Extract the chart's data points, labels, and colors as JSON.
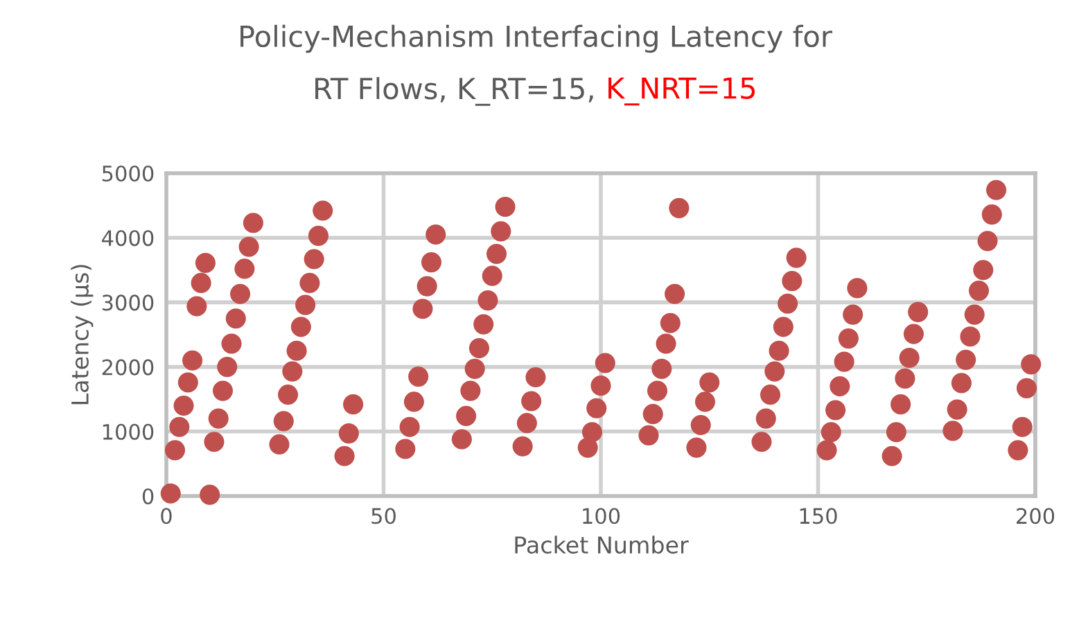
{
  "chart_data": {
    "type": "scatter",
    "title": "Policy-Mechanism Interfacing Latency for\nRT Flows, K_RT=15,",
    "annotations": [
      "K_NRT=15"
    ],
    "xlabel": "Packet Number",
    "ylabel": "Latency (µs)",
    "xlim": [
      0,
      200
    ],
    "xticks": [
      0,
      50,
      100,
      150,
      200
    ],
    "ylim": [
      0,
      5000
    ],
    "yticks": [
      0,
      1000,
      2000,
      3000,
      4000,
      5000
    ],
    "grid": true,
    "marker": "circle",
    "legend": false,
    "series": [
      {
        "color": "#c0504d",
        "x": [
          1,
          2,
          3,
          4,
          5,
          6,
          7,
          8,
          9,
          10,
          11,
          12,
          13,
          14,
          15,
          16,
          17,
          18,
          19,
          20,
          26,
          27,
          28,
          29,
          30,
          31,
          32,
          33,
          34,
          35,
          36,
          41,
          42,
          43,
          55,
          56,
          57,
          58,
          59,
          60,
          61,
          62,
          68,
          69,
          70,
          71,
          72,
          73,
          74,
          75,
          76,
          77,
          78,
          82,
          83,
          84,
          85,
          97,
          98,
          99,
          100,
          101,
          111,
          112,
          113,
          114,
          115,
          116,
          117,
          118,
          122,
          123,
          124,
          125,
          137,
          138,
          139,
          140,
          141,
          142,
          143,
          144,
          145,
          152,
          153,
          154,
          155,
          156,
          157,
          158,
          159,
          167,
          168,
          169,
          170,
          171,
          172,
          173,
          181,
          182,
          183,
          184,
          185,
          186,
          187,
          188,
          189,
          190,
          191,
          196,
          197,
          198,
          199
        ],
        "values": [
          40,
          710,
          1070,
          1400,
          1760,
          2100,
          2940,
          3300,
          3610,
          20,
          840,
          1200,
          1630,
          2000,
          2360,
          2750,
          3130,
          3520,
          3860,
          4230,
          800,
          1160,
          1570,
          1930,
          2250,
          2620,
          2960,
          3300,
          3670,
          4030,
          4420,
          620,
          970,
          1420,
          730,
          1070,
          1460,
          1850,
          2900,
          3250,
          3620,
          4050,
          880,
          1240,
          1630,
          1970,
          2290,
          2660,
          3030,
          3410,
          3750,
          4100,
          4480,
          770,
          1130,
          1470,
          1840,
          750,
          990,
          1360,
          1710,
          2060,
          940,
          1270,
          1630,
          1970,
          2360,
          2680,
          3130,
          4460,
          750,
          1100,
          1460,
          1760,
          840,
          1200,
          1570,
          1930,
          2250,
          2620,
          2980,
          3330,
          3690,
          710,
          990,
          1330,
          1700,
          2080,
          2440,
          2810,
          3220,
          620,
          990,
          1420,
          1820,
          2140,
          2510,
          2850,
          1010,
          1340,
          1750,
          2110,
          2470,
          2810,
          3180,
          3500,
          3950,
          4360,
          4740,
          710,
          1070,
          1670,
          2040
        ]
      }
    ]
  }
}
